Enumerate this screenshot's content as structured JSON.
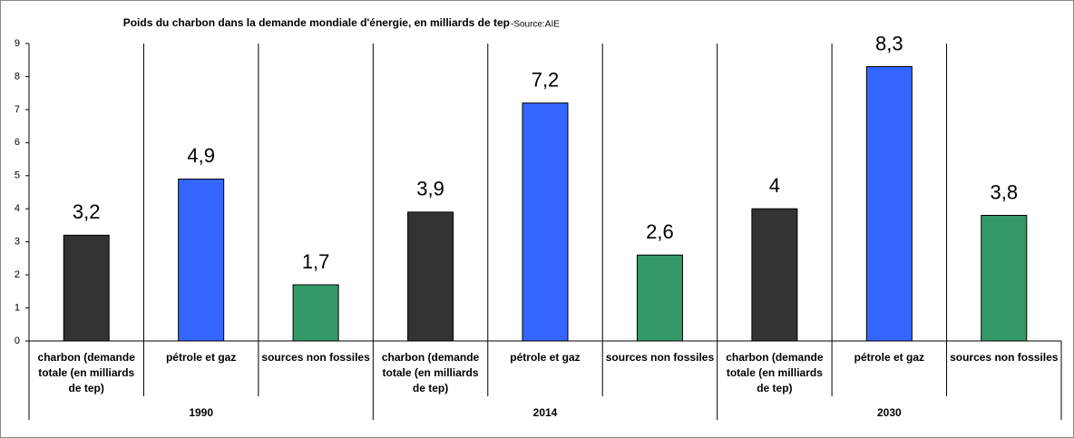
{
  "chart_data": {
    "type": "bar",
    "title": "Poids du charbon dans la demande mondiale d'énergie, en milliards de tep",
    "source": "-Source:AIE",
    "categories": [
      "charbon (demande totale (en milliards de tep)",
      "pétrole et gaz",
      "sources non fossiles",
      "charbon (demande totale (en milliards de tep)",
      "pétrole et gaz",
      "sources non fossiles",
      "charbon (demande totale (en milliards de tep)",
      "pétrole et gaz",
      "sources non fossiles"
    ],
    "groups": [
      "1990",
      "2014",
      "2030"
    ],
    "values": [
      3.2,
      4.9,
      1.7,
      3.9,
      7.2,
      2.6,
      4,
      8.3,
      3.8
    ],
    "value_labels": [
      "3,2",
      "4,9",
      "1,7",
      "3,9",
      "7,2",
      "2,6",
      "4",
      "8,3",
      "3,8"
    ],
    "colors": [
      "#333333",
      "#3366ff",
      "#339966",
      "#333333",
      "#3366ff",
      "#339966",
      "#333333",
      "#3366ff",
      "#339966"
    ],
    "ylim": [
      0,
      9
    ],
    "yticks": [
      0,
      1,
      2,
      3,
      4,
      5,
      6,
      7,
      8,
      9
    ]
  }
}
